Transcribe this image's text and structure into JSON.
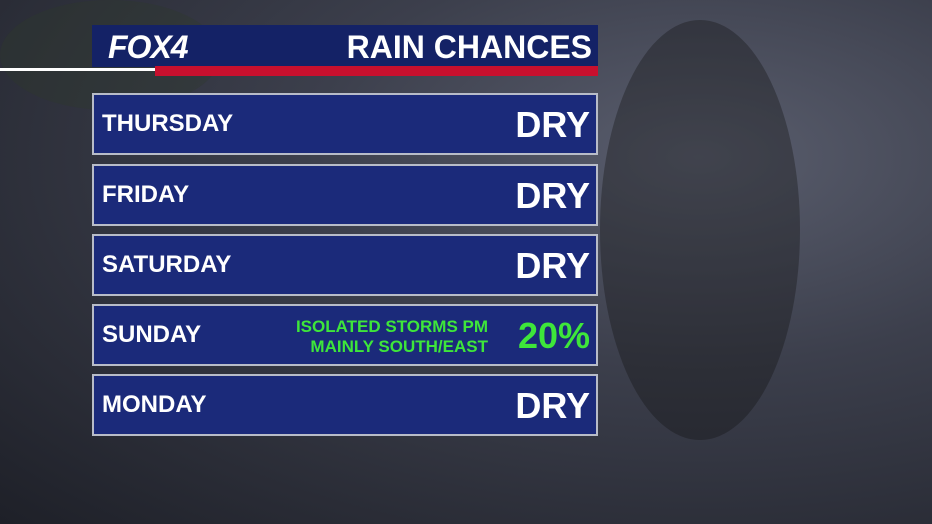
{
  "header": {
    "logo": "FOX4",
    "title": "RAIN CHANCES"
  },
  "rows": [
    {
      "day": "THURSDAY",
      "value": "DRY"
    },
    {
      "day": "FRIDAY",
      "value": "DRY"
    },
    {
      "day": "SATURDAY",
      "value": "DRY"
    },
    {
      "day": "SUNDAY",
      "note": [
        "ISOLATED STORMS PM",
        "MAINLY SOUTH/EAST"
      ],
      "value": "20%"
    },
    {
      "day": "MONDAY",
      "value": "DRY"
    }
  ]
}
